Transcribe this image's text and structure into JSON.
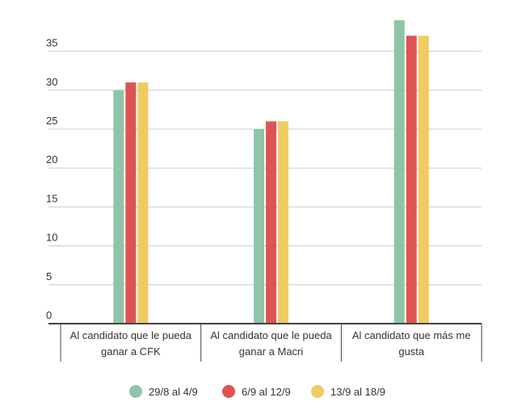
{
  "chart_data": {
    "type": "bar",
    "categories": [
      [
        "Al candidato que le pueda",
        "ganar a CFK"
      ],
      [
        "Al candidato que le pueda",
        "ganar a Macri"
      ],
      [
        "Al candidato que más me",
        "gusta"
      ]
    ],
    "series": [
      {
        "name": "29/8 al 4/9",
        "values": [
          30,
          25,
          39
        ],
        "color": "#8ec5a6"
      },
      {
        "name": "6/9 al 12/9",
        "values": [
          31,
          26,
          37
        ],
        "color": "#df5353"
      },
      {
        "name": "13/9 al 18/9",
        "values": [
          31,
          26,
          37
        ],
        "color": "#f0cb62"
      }
    ],
    "yticks": [
      0,
      5,
      10,
      15,
      20,
      25,
      30,
      35
    ],
    "ylim": [
      0,
      40
    ],
    "grid": true,
    "legend_position": "bottom"
  }
}
